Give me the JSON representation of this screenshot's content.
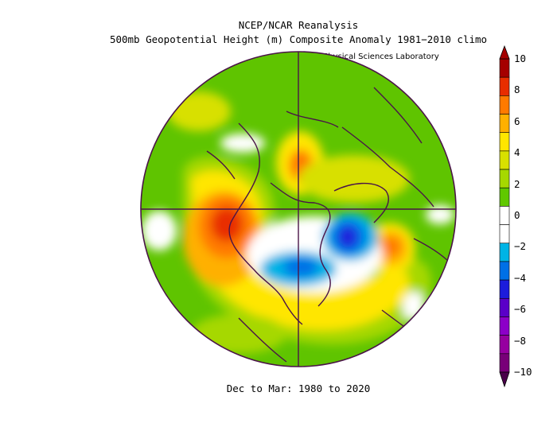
{
  "header": {
    "title_line1": "NCEP/NCAR Reanalysis",
    "title_line2": "500mb Geopotential Height (m) Composite Anomaly 1981−2010 climo",
    "credit": "NOAA Physical Sciences Laboratory"
  },
  "footer": {
    "period": "Dec to Mar: 1980 to 2020"
  },
  "colorbar": {
    "labels": [
      "10",
      "8",
      "6",
      "4",
      "2",
      "0",
      "−2",
      "−4",
      "−6",
      "−8",
      "−10"
    ],
    "colors": [
      "#a50000",
      "#e82d00",
      "#ff7a00",
      "#ffb000",
      "#ffe600",
      "#d8e000",
      "#a6d800",
      "#60c800",
      "#ffffff",
      "#ffffff",
      "#00b4e6",
      "#0070e6",
      "#1c1cdc",
      "#5a00c8",
      "#8c00c8",
      "#9600a0",
      "#780078"
    ]
  },
  "map": {
    "projection": "polar-stereographic",
    "hemisphere": "north",
    "background_color": "#5fc400",
    "outline_color": "#4a1448",
    "anomaly_features": [
      {
        "name": "ridge-west-coast",
        "sign": "positive",
        "peak_m": 10
      },
      {
        "name": "ridge-europe",
        "sign": "positive",
        "peak_m": 8
      },
      {
        "name": "ridge-alaska-north",
        "sign": "positive",
        "peak_m": 6
      },
      {
        "name": "trough-eastern-north-america",
        "sign": "negative",
        "peak_m": -4
      },
      {
        "name": "trough-greenland-labrador",
        "sign": "negative",
        "peak_m": -6
      }
    ]
  }
}
